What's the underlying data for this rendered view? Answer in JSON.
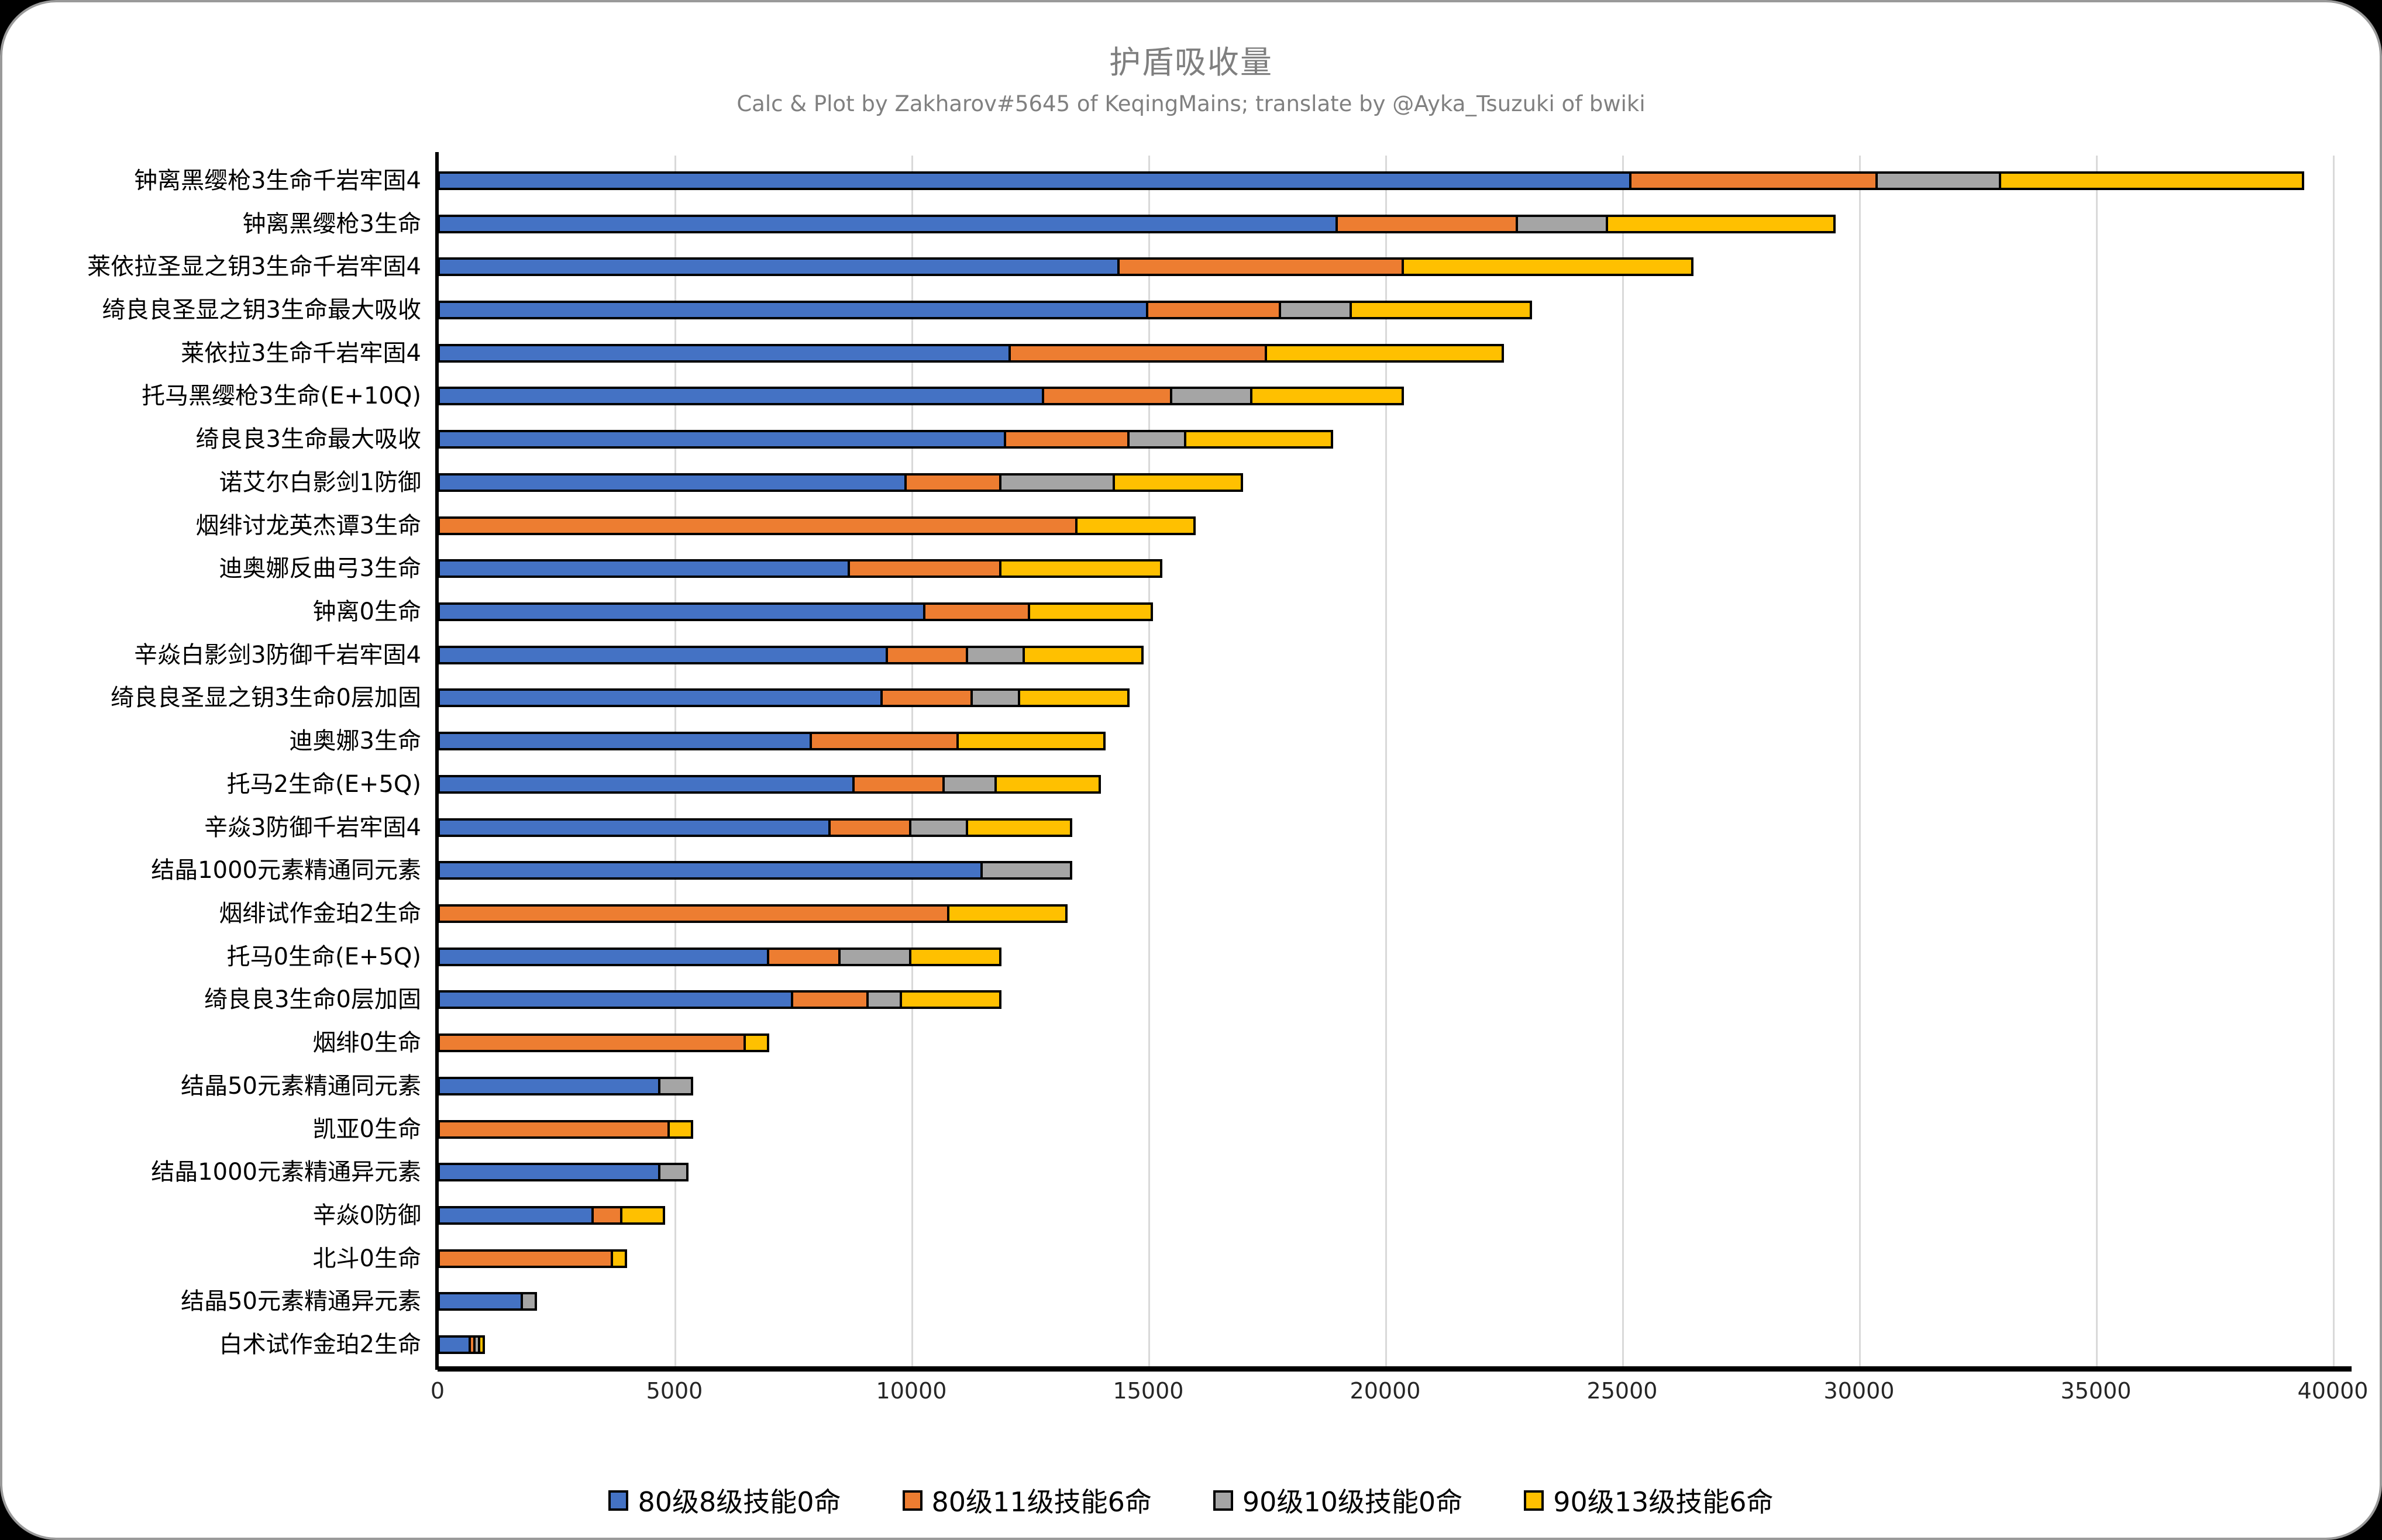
{
  "title": "护盾吸收量",
  "subtitle": "Calc & Plot by Zakharov#5645 of KeqingMains; translate by @Ayka_Tsuzuki of bwiki",
  "colors": {
    "series_blue": "#4472C4",
    "series_orange": "#ED7D31",
    "series_gray": "#A5A5A5",
    "series_yellow": "#FFC000",
    "bar_border": "#000000",
    "gridline": "#D9D9D9",
    "title_text": "#7F7F7F",
    "page_background": "#000000",
    "card_background": "#FFFFFF"
  },
  "chart_data": {
    "type": "bar",
    "orientation": "horizontal",
    "note": "overlapping bars: each series value is the total bar length from 0; longer series drawn behind shorter (visible as stacked-looking increments blue→orange→gray→yellow)",
    "title": "护盾吸收量",
    "xlabel": "",
    "ylabel": "",
    "xlim": [
      0,
      40000
    ],
    "x_ticks": [
      0,
      5000,
      10000,
      15000,
      20000,
      25000,
      30000,
      35000,
      40000
    ],
    "grid": "vertical-only",
    "legend_position": "bottom",
    "series": [
      {
        "name": "80级8级技能0命",
        "color_key": "series_blue"
      },
      {
        "name": "80级11级技能6命",
        "color_key": "series_orange"
      },
      {
        "name": "90级10级技能0命",
        "color_key": "series_gray"
      },
      {
        "name": "90级13级技能6命",
        "color_key": "series_yellow"
      }
    ],
    "categories": [
      "钟离黑缨枪3生命千岩牢固4",
      "钟离黑缨枪3生命",
      "莱依拉圣显之钥3生命千岩牢固4",
      "绮良良圣显之钥3生命最大吸收",
      "莱依拉3生命千岩牢固4",
      "托马黑缨枪3生命(E+10Q)",
      "绮良良3生命最大吸收",
      "诺艾尔白影剑1防御",
      "烟绯讨龙英杰谭3生命",
      "迪奥娜反曲弓3生命",
      "钟离0生命",
      "辛焱白影剑3防御千岩牢固4",
      "绮良良圣显之钥3生命0层加固",
      "迪奥娜3生命",
      "托马2生命(E+5Q)",
      "辛焱3防御千岩牢固4",
      "结晶1000元素精通同元素",
      "烟绯试作金珀2生命",
      "托马0生命(E+5Q)",
      "绮良良3生命0层加固",
      "烟绯0生命",
      "结晶50元素精通同元素",
      "凯亚0生命",
      "结晶1000元素精通异元素",
      "辛焱0防御",
      "北斗0生命",
      "结晶50元素精通异元素",
      "白术试作金珀2生命"
    ],
    "values": [
      [
        25200,
        30400,
        33000,
        39400
      ],
      [
        19000,
        22800,
        24700,
        29500
      ],
      [
        14400,
        20400,
        20400,
        26500
      ],
      [
        15000,
        17800,
        19300,
        23100
      ],
      [
        12100,
        17500,
        17500,
        22500
      ],
      [
        12800,
        15500,
        17200,
        20400
      ],
      [
        12000,
        14600,
        15800,
        18900
      ],
      [
        9900,
        11900,
        14300,
        17000
      ],
      [
        0,
        13500,
        13500,
        16000
      ],
      [
        8700,
        11900,
        11900,
        15300
      ],
      [
        10300,
        12500,
        12500,
        15100
      ],
      [
        9500,
        11200,
        12400,
        14900
      ],
      [
        9400,
        11300,
        12300,
        14600
      ],
      [
        7900,
        11000,
        11000,
        14100
      ],
      [
        8800,
        10700,
        11800,
        14000
      ],
      [
        8300,
        10000,
        11200,
        13400
      ],
      [
        11500,
        11500,
        13400,
        13400
      ],
      [
        0,
        10800,
        10800,
        13300
      ],
      [
        7000,
        8500,
        10000,
        11900
      ],
      [
        7500,
        9100,
        9800,
        11900
      ],
      [
        0,
        6500,
        6500,
        7000
      ],
      [
        4700,
        4700,
        5400,
        5400
      ],
      [
        0,
        4900,
        4900,
        5400
      ],
      [
        4700,
        4700,
        5300,
        5300
      ],
      [
        3300,
        3900,
        3900,
        4800
      ],
      [
        0,
        3700,
        3700,
        4000
      ],
      [
        1800,
        1800,
        2100,
        2100
      ],
      [
        700,
        800,
        900,
        1000
      ]
    ]
  }
}
